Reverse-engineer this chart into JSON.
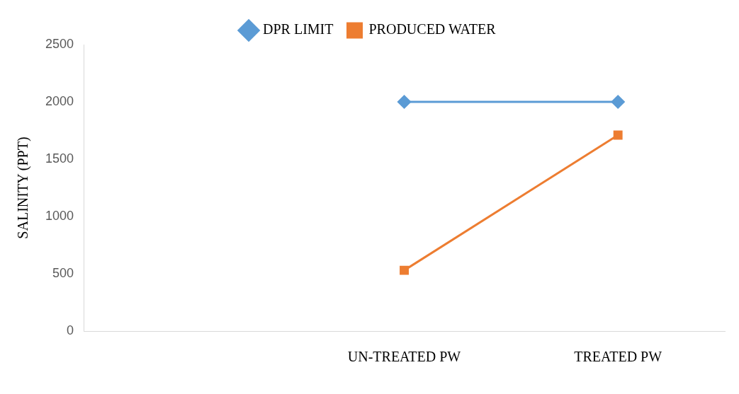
{
  "chart_data": {
    "type": "line",
    "ylabel": "SALINITY (PPT)",
    "categories": [
      null,
      "UN-TREATED PW",
      "TREATED PW"
    ],
    "series": [
      {
        "name": "DPR LIMIT",
        "color": "#5b9bd5",
        "marker": "diamond",
        "values": [
          null,
          2000,
          2000
        ]
      },
      {
        "name": "PRODUCED WATER",
        "color": "#ed7d31",
        "marker": "square",
        "values": [
          null,
          530,
          1710
        ]
      }
    ],
    "ylim": [
      0,
      2500
    ],
    "yticks": [
      0,
      500,
      1000,
      1500,
      2000,
      2500
    ],
    "grid": false,
    "legend": "top",
    "line_style": "solid"
  }
}
